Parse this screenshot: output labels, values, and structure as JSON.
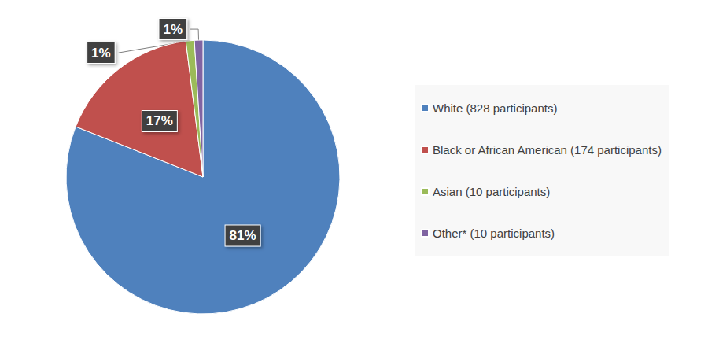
{
  "chart_data": {
    "type": "pie",
    "categories": [
      "White (828 participants)",
      "Black or African American (174 participants)",
      "Asian (10 participants)",
      "Other* (10 participants)"
    ],
    "values": [
      81,
      17,
      1,
      1
    ],
    "value_labels": [
      "81%",
      "17%",
      "1%",
      "1%"
    ],
    "colors": [
      "#4f81bd",
      "#c0504d",
      "#9bbb59",
      "#8064a2"
    ],
    "data_labels": true,
    "legend": "right"
  }
}
